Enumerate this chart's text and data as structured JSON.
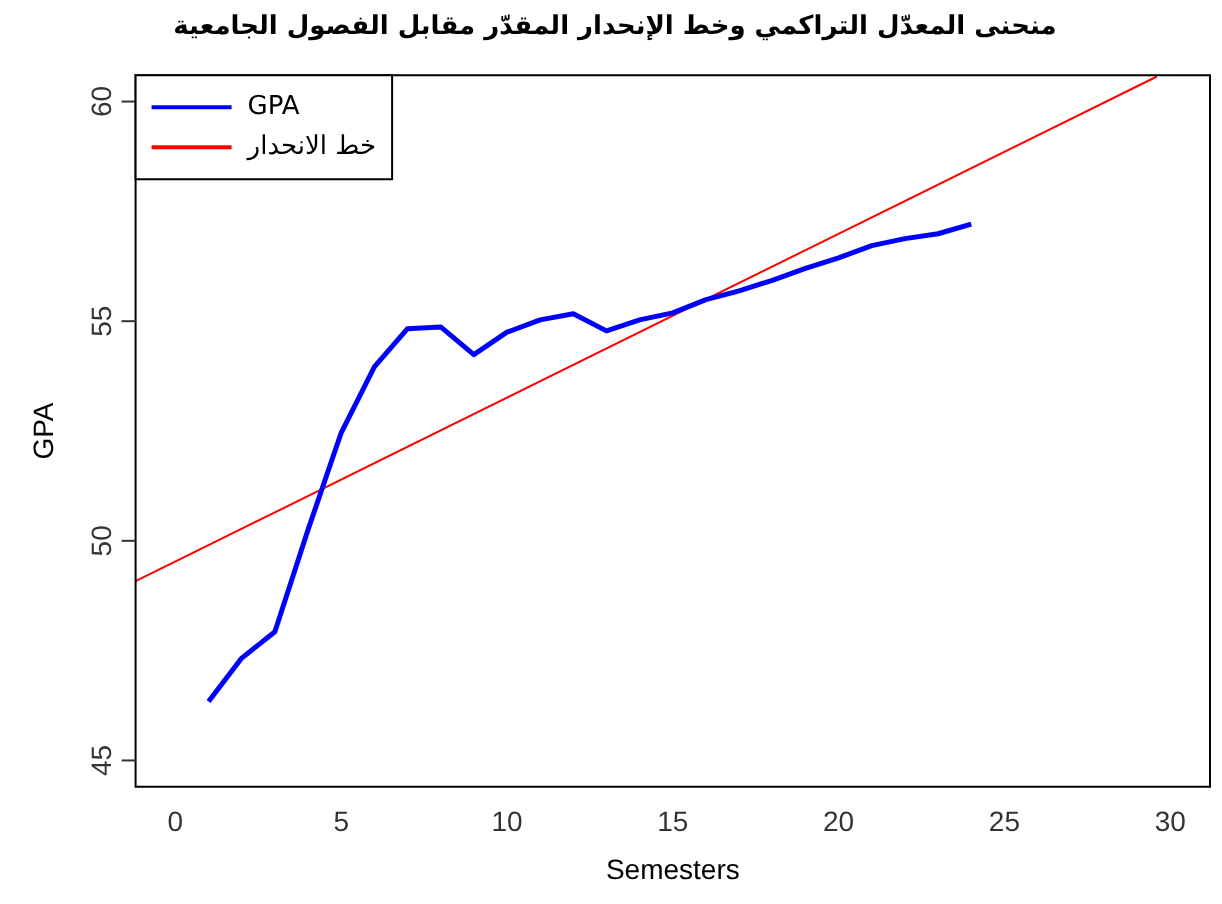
{
  "chart_data": {
    "type": "line",
    "title": "منحنى المعدّل التراكمي وخط الإنحدار المقدّر مقابل الفصول الجامعية",
    "xlabel": "Semesters",
    "ylabel": "GPA",
    "xlim": [
      -1.2,
      31.2
    ],
    "ylim": [
      44.4,
      60.6
    ],
    "xticks": [
      0,
      5,
      10,
      15,
      20,
      25,
      30
    ],
    "yticks": [
      45,
      50,
      55,
      60
    ],
    "grid": false,
    "legend": "top left",
    "marker": "none",
    "line_style": "solid",
    "series": [
      {
        "name": "GPA",
        "color": "#0000ff",
        "x": [
          1,
          2,
          3,
          4,
          5,
          6,
          7,
          8,
          9,
          10,
          11,
          12,
          13,
          14,
          15,
          16,
          17,
          18,
          19,
          20,
          21,
          22,
          23,
          24
        ],
        "values": [
          46.34,
          47.33,
          47.93,
          50.25,
          52.46,
          53.96,
          54.83,
          54.87,
          54.24,
          54.75,
          55.03,
          55.17,
          54.78,
          55.03,
          55.19,
          55.49,
          55.69,
          55.93,
          56.2,
          56.44,
          56.72,
          56.88,
          56.99,
          57.21
        ]
      },
      {
        "name": "خط الانحدار",
        "type": "line",
        "color": "#ff0000",
        "x": [
          -1.2,
          29.6
        ],
        "values": [
          49.08,
          60.57
        ]
      }
    ]
  }
}
